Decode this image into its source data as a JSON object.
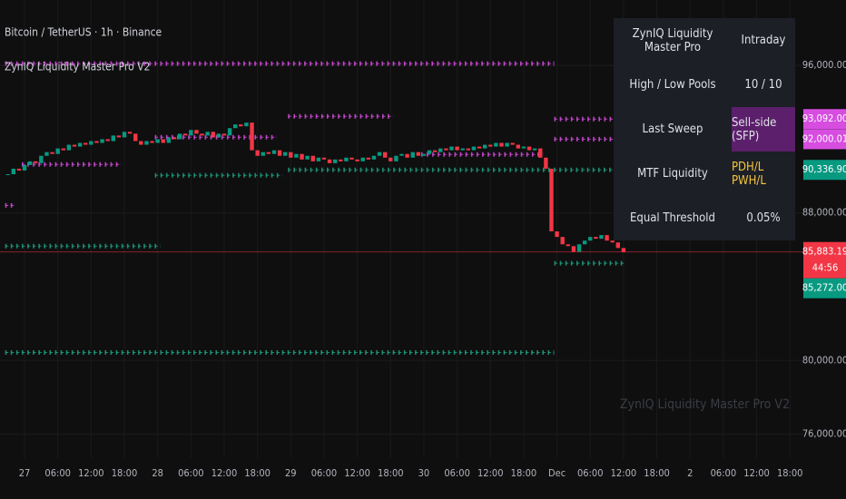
{
  "header": {
    "symbol": "Bitcoin / TetherUS · 1h · Binance",
    "indicator": "ZynIQ Liquidity Master Pro V2"
  },
  "watermark": "ZynIQ Liquidity Master Pro V2",
  "table": {
    "rows": [
      [
        "ZynIQ Liquidity Master Pro",
        "Intraday"
      ],
      [
        "High / Low Pools",
        "10 / 10"
      ],
      [
        "Last Sweep",
        "Sell-side (SFP)"
      ],
      [
        "MTF Liquidity",
        "PDH/L PWH/L"
      ],
      [
        "Equal Threshold",
        "0.05%"
      ]
    ]
  },
  "chart_data": {
    "type": "candlestick",
    "up_color": "#089981",
    "down_color": "#f23645",
    "categories": [
      null,
      null,
      null,
      "27",
      null,
      null,
      null,
      null,
      null,
      "06:00",
      null,
      null,
      null,
      null,
      null,
      "12:00",
      null,
      null,
      null,
      null,
      null,
      "18:00",
      null,
      null,
      null,
      null,
      null,
      "28",
      null,
      null,
      null,
      null,
      null,
      "06:00",
      null,
      null,
      null,
      null,
      null,
      "12:00",
      null,
      null,
      null,
      null,
      null,
      "18:00",
      null,
      null,
      null,
      null,
      null,
      "29",
      null,
      null,
      null,
      null,
      null,
      "06:00",
      null,
      null,
      null,
      null,
      null,
      "12:00",
      null,
      null,
      null,
      null,
      null,
      "18:00",
      null,
      null,
      null,
      null,
      null,
      "30",
      null,
      null,
      null,
      null,
      null,
      "06:00",
      null,
      null,
      null,
      null,
      null,
      "12:00",
      null,
      null,
      null,
      null,
      null,
      "18:00",
      null,
      null,
      null,
      null,
      null,
      "Dec",
      null,
      null,
      null,
      null,
      null,
      "06:00",
      null,
      null,
      null,
      null,
      null,
      "12:00",
      null,
      null,
      null,
      null,
      null,
      "18:00",
      null,
      null,
      null,
      null,
      null,
      "2",
      null,
      null,
      null,
      null,
      null,
      "06:00",
      null,
      null,
      null,
      null,
      null,
      "12:00",
      null,
      null,
      null,
      null,
      null,
      "18:00",
      null,
      null
    ],
    "values": [
      90100,
      90400,
      90300,
      90600,
      90800,
      90700,
      91100,
      91300,
      91200,
      91500,
      91400,
      91700,
      91600,
      91800,
      91700,
      91900,
      91800,
      92000,
      91900,
      92200,
      92100,
      92400,
      92300,
      91900,
      91700,
      91900,
      91800,
      92000,
      91800,
      92100,
      92000,
      92300,
      92200,
      92500,
      92300,
      92200,
      92400,
      92100,
      92300,
      92200,
      92600,
      92800,
      92700,
      92900,
      91400,
      91100,
      91300,
      91200,
      91400,
      91100,
      91300,
      91000,
      91200,
      90900,
      91100,
      90800,
      91000,
      90900,
      90700,
      90900,
      90800,
      91000,
      90900,
      90800,
      91000,
      90900,
      91100,
      91300,
      91000,
      90800,
      91100,
      91200,
      91000,
      91300,
      91100,
      91200,
      91400,
      91300,
      91500,
      91400,
      91600,
      91400,
      91500,
      91400,
      91600,
      91500,
      91700,
      91600,
      91800,
      91600,
      91800,
      91700,
      91500,
      91600,
      91400,
      91500,
      91000,
      90400,
      87000,
      86700,
      86300,
      86200,
      85900,
      86300,
      86500,
      86700,
      86600,
      86800,
      86500,
      86400,
      86100,
      85883.19,
      null,
      null,
      null,
      null,
      null,
      null,
      null,
      null,
      null,
      null,
      null,
      null,
      null,
      null,
      null,
      null,
      null,
      null,
      null,
      null,
      null,
      null,
      null,
      null,
      null,
      null,
      null,
      null,
      null,
      null,
      null,
      null
    ],
    "levels": [
      {
        "value": 96100,
        "color": "#d64de0",
        "from": 0,
        "to": 98
      },
      {
        "value": 93092,
        "color": "#d64de0",
        "from": 99,
        "to": 111
      },
      {
        "value": 93240,
        "color": "#d64de0",
        "from": 51,
        "to": 69
      },
      {
        "value": 92000.01,
        "color": "#d64de0",
        "from": 99,
        "to": 111
      },
      {
        "value": 92110,
        "color": "#d64de0",
        "from": 27,
        "to": 48
      },
      {
        "value": 91170,
        "color": "#d64de0",
        "from": 75,
        "to": 96
      },
      {
        "value": 90630,
        "color": "#d64de0",
        "from": 3,
        "to": 20
      },
      {
        "value": 88410,
        "color": "#d64de0",
        "from": 0,
        "to": 1
      },
      {
        "value": 90336.9,
        "color": "#1f9e80",
        "from": 51,
        "to": 111
      },
      {
        "value": 90040,
        "color": "#1f9e80",
        "from": 27,
        "to": 49
      },
      {
        "value": 86200,
        "color": "#1f9e80",
        "from": 0,
        "to": 27
      },
      {
        "value": 85272,
        "color": "#1f9e80",
        "from": 99,
        "to": 111
      },
      {
        "value": 80430,
        "color": "#1f9e80",
        "from": 0,
        "to": 98
      }
    ],
    "price_labels": [
      {
        "value": 93092,
        "label": "93,092.00",
        "color": "#d64de0"
      },
      {
        "value": 92000.01,
        "label": "92,000.01",
        "color": "#d64de0"
      },
      {
        "value": 90336.9,
        "label": "90,336.90",
        "color": "#089981"
      },
      {
        "value": 85883.19,
        "label": "85,883.19",
        "color": "#f23645"
      },
      {
        "value": 85272,
        "label": "85,272.00",
        "color": "#089981"
      }
    ],
    "countdown": "44:56",
    "ylim": [
      74700,
      99550
    ],
    "yticks": [
      {
        "value": 76000,
        "label": "76,000.00"
      },
      {
        "value": 80000,
        "label": "80,000.00"
      },
      {
        "value": 88000,
        "label": "88,000.00"
      },
      {
        "value": 96000,
        "label": "96,000.00"
      }
    ],
    "grid": true
  }
}
